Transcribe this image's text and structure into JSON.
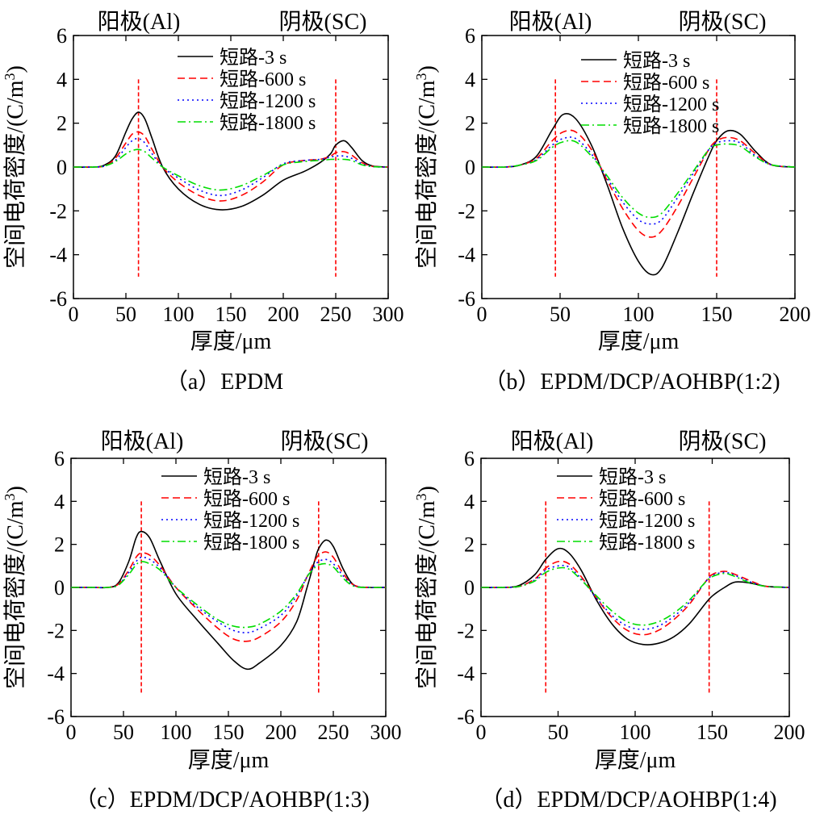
{
  "figure": {
    "series_styles": [
      {
        "color": "#000000",
        "dash": "none"
      },
      {
        "color": "#ff0000",
        "dash": "9,5"
      },
      {
        "color": "#0000ff",
        "dash": "2,4"
      },
      {
        "color": "#00dd00",
        "dash": "10,4,2,4"
      }
    ],
    "marker_color": "#ff0000"
  },
  "chart_data": [
    {
      "type": "line",
      "caption": "（a）EPDM",
      "xlabel": "厚度/μm",
      "ylabel": "空间电荷密度/(C/m",
      "ylabel_sup": "3",
      "ylabel_close": ")",
      "anode_label": "阳极(Al)",
      "cathode_label": "阴极(SC)",
      "xlim": [
        0,
        300
      ],
      "ylim": [
        -6,
        6
      ],
      "xticks": [
        0,
        50,
        100,
        150,
        200,
        250,
        300
      ],
      "yticks": [
        -6,
        -4,
        -2,
        0,
        2,
        4,
        6
      ],
      "electrode_x": [
        62,
        250
      ],
      "legend_position": "top-right",
      "series": [
        {
          "name": "短路-3 s",
          "x": [
            0,
            20,
            30,
            40,
            50,
            56,
            62,
            68,
            75,
            85,
            100,
            120,
            140,
            160,
            180,
            200,
            220,
            235,
            245,
            250,
            258,
            265,
            275,
            285,
            300
          ],
          "y": [
            0,
            0,
            0.1,
            0.5,
            1.6,
            2.2,
            2.5,
            2.2,
            1.3,
            0,
            -1.0,
            -1.7,
            -1.95,
            -1.8,
            -1.3,
            -0.6,
            -0.2,
            0.2,
            0.6,
            1.0,
            1.2,
            0.9,
            0.3,
            0.05,
            0
          ]
        },
        {
          "name": "短路-600 s",
          "x": [
            0,
            20,
            30,
            40,
            50,
            56,
            62,
            68,
            75,
            85,
            100,
            120,
            140,
            160,
            180,
            200,
            220,
            235,
            245,
            250,
            258,
            265,
            275,
            285,
            300
          ],
          "y": [
            0,
            0,
            0.05,
            0.4,
            1.1,
            1.5,
            1.6,
            1.4,
            0.8,
            0,
            -0.7,
            -1.3,
            -1.55,
            -1.3,
            -0.7,
            0.1,
            0.3,
            0.35,
            0.5,
            0.65,
            0.7,
            0.55,
            0.2,
            0.03,
            0
          ]
        },
        {
          "name": "短路-1200 s",
          "x": [
            0,
            20,
            30,
            40,
            50,
            56,
            62,
            68,
            75,
            85,
            100,
            120,
            140,
            160,
            180,
            200,
            220,
            235,
            245,
            250,
            258,
            265,
            275,
            285,
            300
          ],
          "y": [
            0,
            0,
            0.05,
            0.3,
            0.9,
            1.2,
            1.3,
            1.1,
            0.6,
            0,
            -0.5,
            -1.05,
            -1.3,
            -1.05,
            -0.5,
            0.15,
            0.3,
            0.35,
            0.45,
            0.5,
            0.5,
            0.4,
            0.15,
            0.02,
            0
          ]
        },
        {
          "name": "短路-1800 s",
          "x": [
            0,
            20,
            30,
            40,
            50,
            56,
            62,
            68,
            75,
            85,
            100,
            120,
            140,
            160,
            180,
            200,
            220,
            235,
            245,
            250,
            258,
            265,
            275,
            285,
            300
          ],
          "y": [
            0,
            0,
            0.05,
            0.25,
            0.6,
            0.75,
            0.8,
            0.7,
            0.4,
            0,
            -0.4,
            -0.85,
            -1.05,
            -0.85,
            -0.4,
            0.1,
            0.25,
            0.3,
            0.35,
            0.35,
            0.35,
            0.3,
            0.1,
            0.02,
            0
          ]
        }
      ]
    },
    {
      "type": "line",
      "caption": "（b）EPDM/DCP/AOHBP(1:2)",
      "xlabel": "厚度/μm",
      "ylabel": "空间电荷密度/(C/m",
      "ylabel_sup": "3",
      "ylabel_close": ")",
      "anode_label": "阳极(Al)",
      "cathode_label": "阴极(SC)",
      "xlim": [
        0,
        200
      ],
      "ylim": [
        -6,
        6
      ],
      "xticks": [
        0,
        50,
        100,
        150,
        200
      ],
      "yticks": [
        -6,
        -4,
        -2,
        0,
        2,
        4,
        6
      ],
      "electrode_x": [
        47,
        150
      ],
      "legend_position": "top-right",
      "series": [
        {
          "name": "短路-3 s",
          "x": [
            0,
            15,
            25,
            35,
            45,
            52,
            60,
            70,
            80,
            90,
            100,
            108,
            115,
            125,
            135,
            145,
            150,
            157,
            165,
            175,
            185,
            200
          ],
          "y": [
            0,
            0,
            0.1,
            0.5,
            1.7,
            2.4,
            2.2,
            1.0,
            -0.8,
            -2.8,
            -4.3,
            -4.9,
            -4.6,
            -3.0,
            -1.2,
            0.5,
            1.2,
            1.65,
            1.5,
            0.7,
            0.1,
            0
          ]
        },
        {
          "name": "短路-600 s",
          "x": [
            0,
            15,
            25,
            35,
            45,
            52,
            60,
            70,
            80,
            90,
            100,
            108,
            115,
            125,
            135,
            145,
            150,
            157,
            165,
            175,
            185,
            200
          ],
          "y": [
            0,
            0,
            0.1,
            0.4,
            1.2,
            1.6,
            1.6,
            0.8,
            -0.6,
            -1.9,
            -2.9,
            -3.2,
            -2.9,
            -1.8,
            -0.5,
            0.8,
            1.2,
            1.35,
            1.2,
            0.6,
            0.1,
            0
          ]
        },
        {
          "name": "短路-1200 s",
          "x": [
            0,
            15,
            25,
            35,
            45,
            52,
            60,
            70,
            80,
            90,
            100,
            108,
            115,
            125,
            135,
            145,
            150,
            157,
            165,
            175,
            185,
            200
          ],
          "y": [
            0,
            0,
            0.1,
            0.35,
            1.0,
            1.3,
            1.3,
            0.6,
            -0.5,
            -1.6,
            -2.4,
            -2.6,
            -2.4,
            -1.4,
            -0.3,
            0.8,
            1.1,
            1.2,
            1.1,
            0.5,
            0.1,
            0
          ]
        },
        {
          "name": "短路-1800 s",
          "x": [
            0,
            15,
            25,
            35,
            45,
            52,
            60,
            70,
            80,
            90,
            100,
            108,
            115,
            125,
            135,
            145,
            150,
            157,
            165,
            175,
            185,
            200
          ],
          "y": [
            0,
            0,
            0.1,
            0.3,
            0.9,
            1.15,
            1.15,
            0.5,
            -0.4,
            -1.4,
            -2.1,
            -2.3,
            -2.1,
            -1.2,
            -0.2,
            0.8,
            1.0,
            1.05,
            0.95,
            0.45,
            0.1,
            0
          ]
        }
      ]
    },
    {
      "type": "line",
      "caption": "（c）EPDM/DCP/AOHBP(1:3)",
      "xlabel": "厚度/μm",
      "ylabel": "空间电荷密度/(C/m",
      "ylabel_sup": "3",
      "ylabel_close": ")",
      "anode_label": "阳极(Al)",
      "cathode_label": "阴极(SC)",
      "xlim": [
        0,
        300
      ],
      "ylim": [
        -6,
        6
      ],
      "xticks": [
        0,
        50,
        100,
        150,
        200,
        250,
        300
      ],
      "yticks": [
        -6,
        -4,
        -2,
        0,
        2,
        4,
        6
      ],
      "electrode_x": [
        67,
        236
      ],
      "legend_position": "top-right",
      "series": [
        {
          "name": "短路-3 s",
          "x": [
            0,
            20,
            35,
            45,
            55,
            62,
            67,
            75,
            85,
            100,
            120,
            140,
            155,
            168,
            180,
            200,
            215,
            225,
            232,
            236,
            243,
            250,
            260,
            270,
            285,
            300
          ],
          "y": [
            0,
            0,
            0,
            0.2,
            1.2,
            2.3,
            2.6,
            2.3,
            1.2,
            -0.3,
            -1.5,
            -2.6,
            -3.4,
            -3.8,
            -3.5,
            -2.7,
            -1.6,
            0,
            1.2,
            1.8,
            2.2,
            1.9,
            0.8,
            0.1,
            0,
            0
          ]
        },
        {
          "name": "短路-600 s",
          "x": [
            0,
            20,
            35,
            45,
            55,
            62,
            67,
            75,
            85,
            100,
            120,
            140,
            155,
            168,
            180,
            200,
            215,
            225,
            232,
            236,
            243,
            250,
            260,
            270,
            285,
            300
          ],
          "y": [
            0,
            0,
            0,
            0.15,
            0.8,
            1.4,
            1.6,
            1.5,
            1.0,
            0,
            -1.0,
            -1.9,
            -2.4,
            -2.5,
            -2.3,
            -1.6,
            -0.6,
            0.5,
            1.2,
            1.5,
            1.65,
            1.4,
            0.6,
            0.1,
            0,
            0
          ]
        },
        {
          "name": "短路-1200 s",
          "x": [
            0,
            20,
            35,
            45,
            55,
            62,
            67,
            75,
            85,
            100,
            120,
            140,
            155,
            168,
            180,
            200,
            215,
            225,
            232,
            236,
            243,
            250,
            260,
            270,
            285,
            300
          ],
          "y": [
            0,
            0,
            0,
            0.12,
            0.7,
            1.2,
            1.4,
            1.3,
            0.9,
            0,
            -0.9,
            -1.6,
            -2.0,
            -2.1,
            -1.9,
            -1.3,
            -0.4,
            0.5,
            1.0,
            1.2,
            1.3,
            1.1,
            0.5,
            0.08,
            0,
            0
          ]
        },
        {
          "name": "短路-1800 s",
          "x": [
            0,
            20,
            35,
            45,
            55,
            62,
            67,
            75,
            85,
            100,
            120,
            140,
            155,
            168,
            180,
            200,
            215,
            225,
            232,
            236,
            243,
            250,
            260,
            270,
            285,
            300
          ],
          "y": [
            0,
            0,
            0,
            0.1,
            0.6,
            1.05,
            1.2,
            1.1,
            0.8,
            0,
            -0.8,
            -1.5,
            -1.8,
            -1.85,
            -1.7,
            -1.1,
            -0.3,
            0.5,
            0.9,
            1.05,
            1.1,
            0.95,
            0.4,
            0.05,
            0,
            0
          ]
        }
      ]
    },
    {
      "type": "line",
      "caption": "（d）EPDM/DCP/AOHBP(1:4)",
      "xlabel": "厚度/μm",
      "ylabel": "空间电荷密度/(C/m",
      "ylabel_sup": "3",
      "ylabel_close": ")",
      "anode_label": "阳极(Al)",
      "cathode_label": "阴极(SC)",
      "xlim": [
        0,
        200
      ],
      "ylim": [
        -6,
        6
      ],
      "xticks": [
        0,
        50,
        100,
        150,
        200
      ],
      "yticks": [
        -6,
        -4,
        -2,
        0,
        2,
        4,
        6
      ],
      "electrode_x": [
        42,
        148
      ],
      "legend_position": "top-right",
      "series": [
        {
          "name": "短路-3 s",
          "x": [
            0,
            15,
            25,
            35,
            42,
            50,
            57,
            65,
            75,
            85,
            95,
            105,
            115,
            125,
            135,
            145,
            150,
            158,
            165,
            175,
            185,
            200
          ],
          "y": [
            0,
            0,
            0.1,
            0.6,
            1.3,
            1.8,
            1.6,
            0.8,
            -0.6,
            -1.7,
            -2.4,
            -2.65,
            -2.6,
            -2.3,
            -1.7,
            -0.8,
            -0.4,
            0,
            0.25,
            0.2,
            0.05,
            0
          ]
        },
        {
          "name": "短路-600 s",
          "x": [
            0,
            15,
            25,
            35,
            42,
            50,
            57,
            65,
            75,
            85,
            95,
            105,
            115,
            125,
            135,
            145,
            150,
            158,
            165,
            175,
            185,
            200
          ],
          "y": [
            0,
            0,
            0.05,
            0.4,
            0.9,
            1.2,
            1.1,
            0.5,
            -0.5,
            -1.4,
            -2.0,
            -2.2,
            -2.0,
            -1.5,
            -0.8,
            0.2,
            0.6,
            0.75,
            0.6,
            0.3,
            0.05,
            0
          ]
        },
        {
          "name": "短路-1200 s",
          "x": [
            0,
            15,
            25,
            35,
            42,
            50,
            57,
            65,
            75,
            85,
            95,
            105,
            115,
            125,
            135,
            145,
            150,
            158,
            165,
            175,
            185,
            200
          ],
          "y": [
            0,
            0,
            0.05,
            0.35,
            0.8,
            1.0,
            0.95,
            0.4,
            -0.5,
            -1.3,
            -1.8,
            -1.95,
            -1.8,
            -1.35,
            -0.7,
            0.2,
            0.55,
            0.7,
            0.55,
            0.25,
            0.05,
            0
          ]
        },
        {
          "name": "短路-1800 s",
          "x": [
            0,
            15,
            25,
            35,
            42,
            50,
            57,
            65,
            75,
            85,
            95,
            105,
            115,
            125,
            135,
            145,
            150,
            158,
            165,
            175,
            185,
            200
          ],
          "y": [
            0,
            0,
            0.05,
            0.3,
            0.7,
            0.9,
            0.85,
            0.35,
            -0.4,
            -1.1,
            -1.6,
            -1.75,
            -1.6,
            -1.2,
            -0.6,
            0.2,
            0.5,
            0.65,
            0.5,
            0.2,
            0.05,
            0
          ]
        }
      ]
    }
  ]
}
